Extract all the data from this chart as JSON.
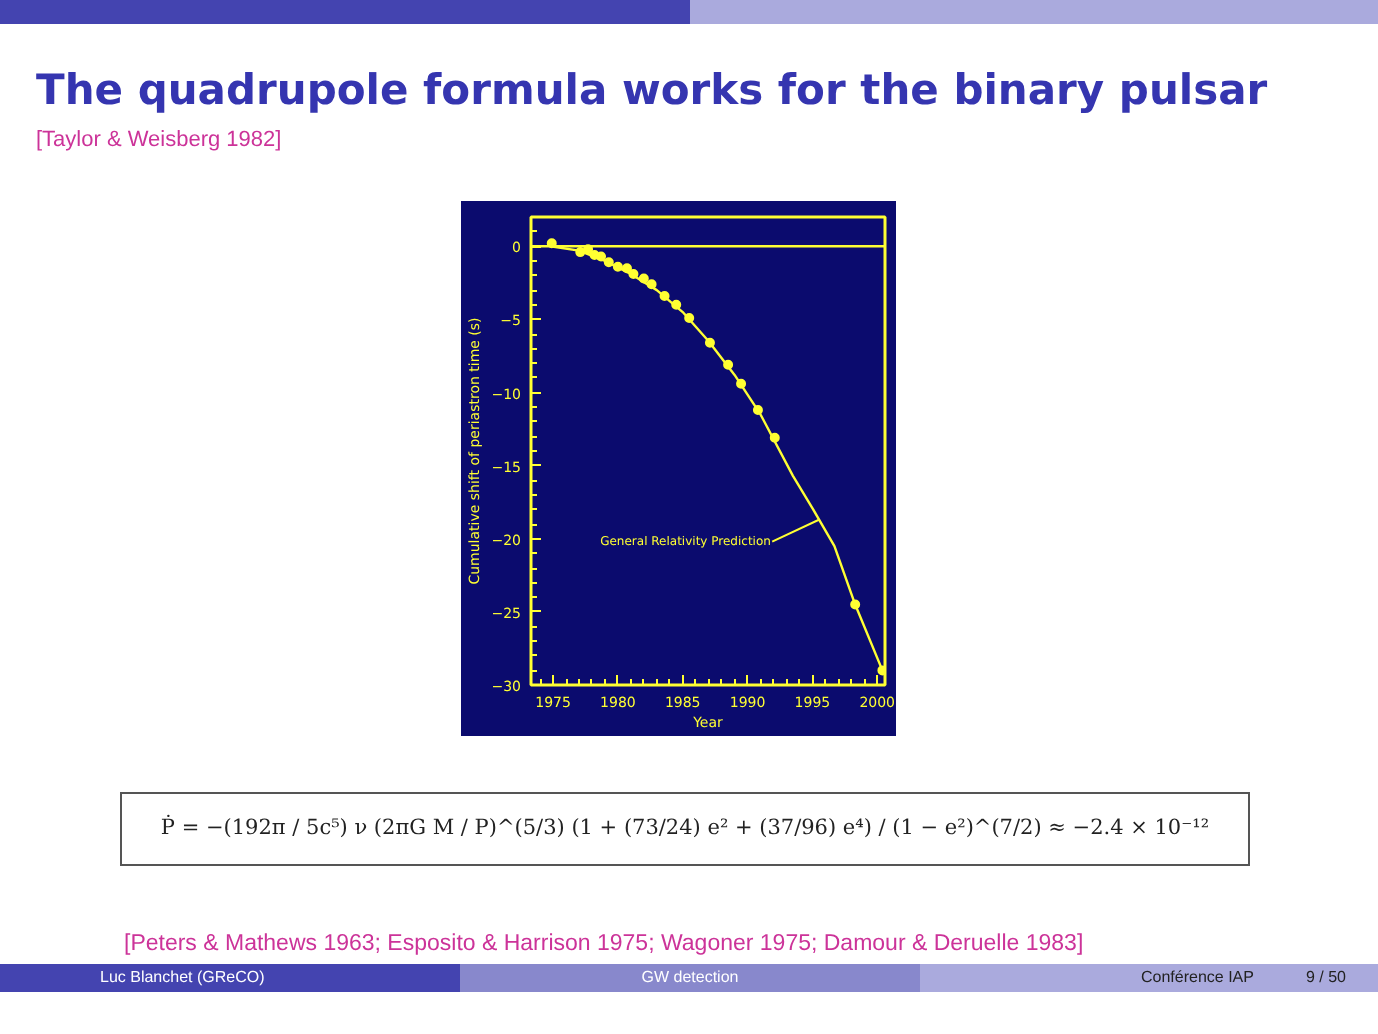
{
  "chart_data": {
    "type": "scatter",
    "title": "The quadrupole formula works for the binary pulsar",
    "xlabel": "Year",
    "ylabel": "Cumulative shift of periastron time (s)",
    "xlim": [
      1973.3,
      2000.6
    ],
    "ylim": [
      -30,
      2
    ],
    "xticks": [
      1975,
      1980,
      1985,
      1990,
      1995,
      2000
    ],
    "yticks": [
      -30,
      -25,
      -20,
      -15,
      -10,
      -5,
      0
    ],
    "grid": false,
    "series": [
      {
        "marker": "circle",
        "color": "#ffff33",
        "x": [
          1974.9,
          1977.1,
          1977.7,
          1978.2,
          1978.7,
          1979.3,
          1980.0,
          1980.7,
          1981.2,
          1982.0,
          1982.6,
          1983.6,
          1984.5,
          1985.5,
          1987.1,
          1988.5,
          1989.5,
          1990.8,
          1992.1,
          1998.3,
          2000.4
        ],
        "values": [
          0.2,
          -0.4,
          -0.2,
          -0.6,
          -0.7,
          -1.1,
          -1.4,
          -1.5,
          -1.9,
          -2.2,
          -2.6,
          -3.4,
          -4.0,
          -4.9,
          -6.6,
          -8.1,
          -9.4,
          -11.2,
          -13.1,
          -24.5,
          -29.0
        ]
      },
      {
        "type": "line",
        "color": "#ffff33",
        "line_style": "solid",
        "x": [
          1974.8,
          1977,
          1979,
          1981,
          1983,
          1985,
          1987,
          1989,
          1991,
          1993.5,
          1995,
          1996.7,
          1998.3,
          2000.4
        ],
        "values": [
          0,
          -0.3,
          -1.0,
          -1.9,
          -3.0,
          -4.5,
          -6.5,
          -8.8,
          -11.5,
          -15.7,
          -17.9,
          -20.5,
          -24.5,
          -29.0
        ]
      }
    ],
    "ref_lines": [
      {
        "axis": "y",
        "value": 0,
        "label": null,
        "color": "#ffff33"
      }
    ],
    "annotations": [
      "[Taylor & Weisberg 1982]",
      {
        "text": "General Relativity Prediction",
        "x": 1995.5,
        "y": -18.7
      },
      "Ṗ = −(192π / 5c⁵) ν (2πG M / P)^(5/3) (1 + (73/24) e² + (37/96) e⁴) / (1 − e²)^(7/2) ≈ −2.4 × 10⁻¹²",
      "[Peters & Mathews 1963; Esposito & Harrison 1975; Wagoner 1975; Damour & Deruelle 1983]",
      "Luc Blanchet (GReCO)",
      "GW detection",
      "Conférence IAP",
      "9 / 50"
    ]
  }
}
